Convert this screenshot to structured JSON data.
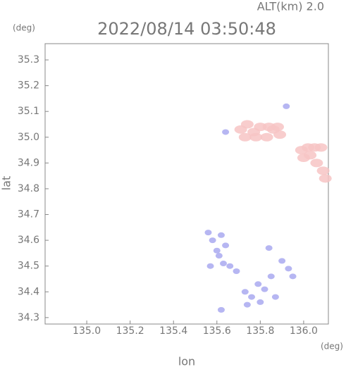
{
  "chart_data": {
    "type": "scatter",
    "title": "2022/08/14 03:50:48",
    "subtitle": "ALT(km) 2.0",
    "y_unit": "(deg)",
    "x_unit": "(deg)",
    "xlabel": "lon",
    "ylabel": "lat",
    "xlim": [
      134.808,
      136.114
    ],
    "ylim": [
      34.275,
      35.363
    ],
    "xticks": [
      {
        "value": 135,
        "label": "135.0"
      },
      135.2,
      135.4,
      135.6,
      135.8,
      {
        "value": 136,
        "label": "136.0"
      }
    ],
    "yticks": [
      34.3,
      34.4,
      34.5,
      34.6,
      34.7,
      34.8,
      34.9,
      {
        "value": 35,
        "label": "35.0"
      },
      35.1,
      35.2,
      35.3
    ],
    "series": [
      {
        "color": "#f7c4c4",
        "x": [
          135.71,
          135.74,
          135.77,
          135.8,
          135.83,
          135.86,
          135.89,
          135.73,
          135.78,
          135.84,
          135.88,
          135.99,
          136.02,
          136.05,
          136.08,
          136.0,
          136.06,
          136.09,
          136.1,
          136.03
        ],
        "y": [
          35.03,
          35.05,
          35.02,
          35.04,
          35.0,
          35.03,
          35.01,
          35.0,
          35.0,
          35.04,
          35.04,
          34.95,
          34.96,
          34.96,
          34.96,
          34.92,
          34.9,
          34.87,
          34.84,
          34.93
        ]
      },
      {
        "color": "#a9a9f0",
        "x": [
          135.64,
          135.92,
          135.56,
          135.58,
          135.6,
          135.62,
          135.64,
          135.57,
          135.63,
          135.61,
          135.66,
          135.69,
          135.73,
          135.76,
          135.79,
          135.82,
          135.85,
          135.87,
          135.74,
          135.8,
          135.9,
          135.93,
          135.95,
          135.62,
          135.84
        ],
        "y": [
          35.02,
          35.12,
          34.63,
          34.6,
          34.56,
          34.62,
          34.58,
          34.5,
          34.51,
          34.54,
          34.5,
          34.48,
          34.4,
          34.38,
          34.43,
          34.41,
          34.46,
          34.38,
          34.35,
          34.36,
          34.52,
          34.49,
          34.46,
          34.33,
          34.57
        ]
      }
    ],
    "grid": false
  }
}
